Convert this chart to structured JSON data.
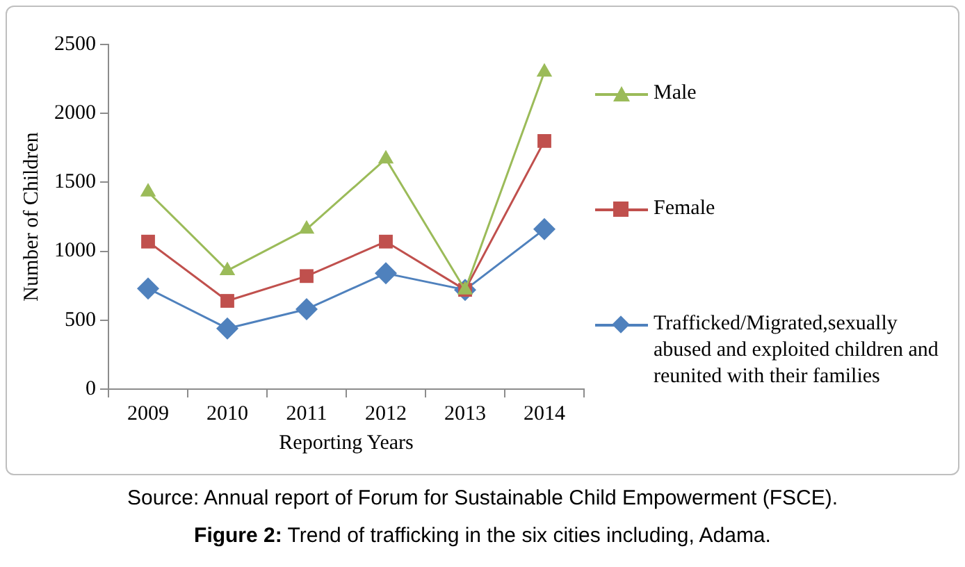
{
  "chart_data": {
    "type": "line",
    "title": "Figure 2: Trend of trafficking in the six cities including, Adama.",
    "xlabel": "Reporting Years",
    "ylabel": "Number of Children",
    "annotations": [
      "Source: Annual report of Forum for Sustainable Child Empowerment (FSCE)."
    ],
    "categories": [
      "2009",
      "2010",
      "2011",
      "2012",
      "2013",
      "2014"
    ],
    "series": [
      {
        "name": "Male",
        "color": "#9bbb59",
        "marker": "triangle",
        "values": [
          1430,
          860,
          1160,
          1670,
          720,
          2300
        ]
      },
      {
        "name": "Female",
        "color": "#c0504d",
        "marker": "square",
        "values": [
          1070,
          640,
          820,
          1070,
          720,
          1800
        ]
      },
      {
        "name": "Trafficked/Migrated,sexually abused and exploited children and reunited with their families",
        "color": "#4f81bd",
        "marker": "diamond",
        "values": [
          730,
          440,
          580,
          840,
          720,
          1160
        ]
      }
    ],
    "ylim": [
      0,
      2500
    ],
    "yticks": [
      0,
      500,
      1000,
      1500,
      2000,
      2500
    ],
    "grid": false,
    "legend": "right",
    "line_style": "solid"
  }
}
